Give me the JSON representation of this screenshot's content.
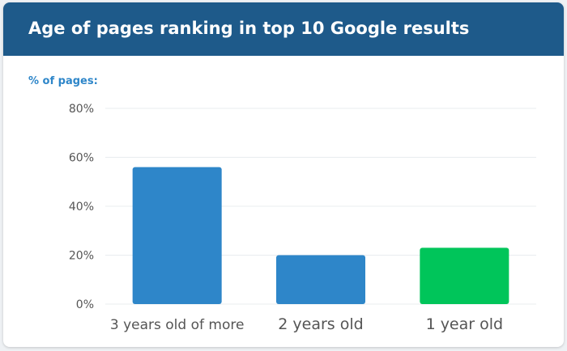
{
  "header": {
    "title": "Age of pages ranking in top 10 Google results"
  },
  "chart_data": {
    "type": "bar",
    "title": "Age of pages ranking in top 10 Google results",
    "xlabel": "",
    "ylabel": "% of pages:",
    "categories": [
      "3 years old of more",
      "2 years old",
      "1 year old"
    ],
    "values": [
      56,
      20,
      23
    ],
    "bar_colors": [
      "#2e86c9",
      "#2e86c9",
      "#00c55a"
    ],
    "ylim": [
      0,
      80
    ],
    "yticks": [
      0,
      20,
      40,
      60,
      80
    ],
    "ytick_labels": [
      "0%",
      "20%",
      "40%",
      "60%",
      "80%"
    ],
    "grid": true,
    "legend": "none"
  },
  "colors": {
    "header_bg": "#1e5a8a",
    "ylabel": "#2e86c9",
    "gridline": "#e8ecef",
    "tick_text": "#555555"
  }
}
